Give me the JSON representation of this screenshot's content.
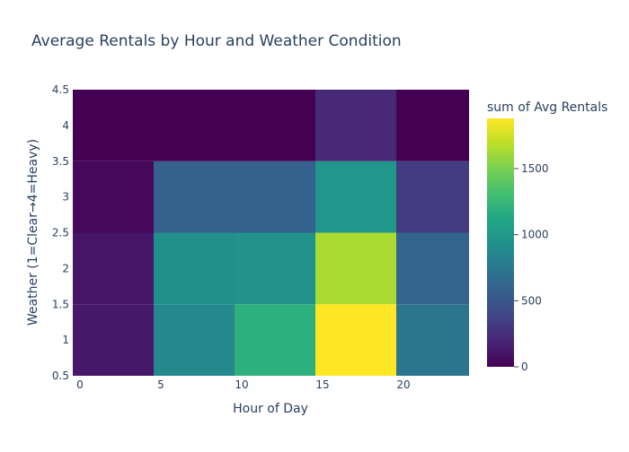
{
  "chart_data": {
    "type": "heatmap",
    "title": "Average Rentals by Hour and Weather Condition",
    "xlabel": "Hour of Day",
    "ylabel": "Weather (1=Clear→4=Heavy)",
    "xlim": [
      0,
      24
    ],
    "ylim": [
      0.5,
      4.5
    ],
    "x_ticks": [
      "0",
      "5",
      "10",
      "15",
      "20"
    ],
    "y_ticks": [
      "0.5",
      "1",
      "1.5",
      "2",
      "2.5",
      "3",
      "3.5",
      "4",
      "4.5"
    ],
    "x_bins": [
      [
        0,
        5
      ],
      [
        5,
        10
      ],
      [
        10,
        15
      ],
      [
        15,
        20
      ],
      [
        20,
        24
      ]
    ],
    "y_bins": [
      [
        0.5,
        1.5
      ],
      [
        1.5,
        2.5
      ],
      [
        2.5,
        3.5
      ],
      [
        3.5,
        4.5
      ]
    ],
    "z": [
      [
        120,
        870,
        1190,
        1880,
        740
      ],
      [
        110,
        930,
        960,
        1640,
        600
      ],
      [
        40,
        580,
        580,
        980,
        330
      ],
      [
        0,
        0,
        0,
        220,
        0
      ]
    ],
    "colorbar": {
      "title": "sum of Avg Rentals",
      "min": 0,
      "max": 1880,
      "ticks": [
        "0",
        "500",
        "1000",
        "1500"
      ],
      "colorscale": "Viridis"
    },
    "grid": false
  }
}
